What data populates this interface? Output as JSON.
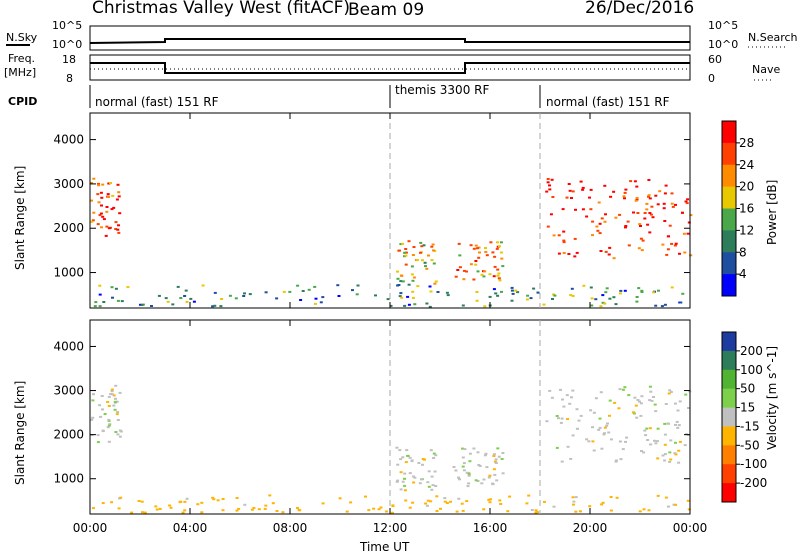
{
  "header": {
    "station": "Christmas Valley West (fitACF)",
    "beam": "Beam 09",
    "date": "26/Dec/2016"
  },
  "labels": {
    "nsky": "N.Sky",
    "nsearch": "N.Search",
    "freq_line1": "Freq.",
    "freq_line2": "[MHz]",
    "nave": "Nave",
    "cpid": "CPID",
    "nsky_hi": "10^5",
    "nsky_lo": "10^0",
    "nsearch_hi": "10^5",
    "nsearch_lo": "10^0",
    "freq_hi": "18",
    "freq_lo": "8",
    "nave_hi": "60",
    "nave_lo": "0"
  },
  "cpid_segments": [
    {
      "label": "normal (fast) 151 RF",
      "start": 0,
      "end": 12
    },
    {
      "label": "themis 3300 RF",
      "start": 12,
      "end": 18
    },
    {
      "label": "normal (fast) 151 RF",
      "start": 18,
      "end": 24
    }
  ],
  "chart_data": [
    {
      "type": "heatmap",
      "title": "Power",
      "xlabel": "Time UT",
      "ylabel": "Slant Range [km]",
      "colorbar_label": "Power [dB]",
      "xlim": [
        0,
        24
      ],
      "ylim": [
        200,
        4600
      ],
      "xticks": [
        "00:00",
        "04:00",
        "08:00",
        "12:00",
        "16:00",
        "20:00",
        "00:00"
      ],
      "yticks": [
        1000,
        2000,
        3000,
        4000
      ],
      "colorbar_ticks": [
        4,
        8,
        12,
        16,
        20,
        24,
        28
      ],
      "colors": [
        "#0000ff",
        "#1e4ea0",
        "#2e7d5a",
        "#4aa84a",
        "#e8c800",
        "#ff8c00",
        "#ff4000",
        "#ff0000"
      ],
      "features": [
        {
          "x": [
            0.0,
            1.2
          ],
          "y": [
            1800,
            3100
          ],
          "level": 0.82
        },
        {
          "x": [
            12.2,
            13.8
          ],
          "y": [
            700,
            1700
          ],
          "level": 0.6
        },
        {
          "x": [
            14.5,
            16.5
          ],
          "y": [
            800,
            1700
          ],
          "level": 0.7
        },
        {
          "x": [
            18.2,
            24.0
          ],
          "y": [
            1300,
            3100
          ],
          "level": 0.9
        },
        {
          "x": [
            0.0,
            24.0
          ],
          "y": [
            200,
            700
          ],
          "level": 0.35
        }
      ]
    },
    {
      "type": "heatmap",
      "title": "Velocity",
      "xlabel": "Time UT",
      "ylabel": "Slant Range [km]",
      "colorbar_label": "Velocity [m s^-1]",
      "xlim": [
        0,
        24
      ],
      "ylim": [
        200,
        4600
      ],
      "xticks": [
        "00:00",
        "04:00",
        "08:00",
        "12:00",
        "16:00",
        "20:00",
        "00:00"
      ],
      "yticks": [
        1000,
        2000,
        3000,
        4000
      ],
      "colorbar_ticks": [
        200,
        100,
        50,
        15,
        -15,
        -50,
        -100,
        -200
      ],
      "colors": [
        "#1e3ca0",
        "#2e7d5a",
        "#50b432",
        "#7cd04a",
        "#c0c0c0",
        "#ffb400",
        "#ff8000",
        "#ff4000",
        "#ff0000"
      ],
      "features": [
        {
          "x": [
            0.0,
            1.2
          ],
          "y": [
            1800,
            3100
          ],
          "value": 0
        },
        {
          "x": [
            12.2,
            13.8
          ],
          "y": [
            700,
            1700
          ],
          "value": 0
        },
        {
          "x": [
            14.5,
            16.5
          ],
          "y": [
            800,
            1700
          ],
          "value": 0
        },
        {
          "x": [
            18.2,
            24.0
          ],
          "y": [
            1300,
            3100
          ],
          "value": 0
        },
        {
          "x": [
            0.0,
            24.0
          ],
          "y": [
            200,
            600
          ],
          "value": -30
        }
      ]
    }
  ]
}
